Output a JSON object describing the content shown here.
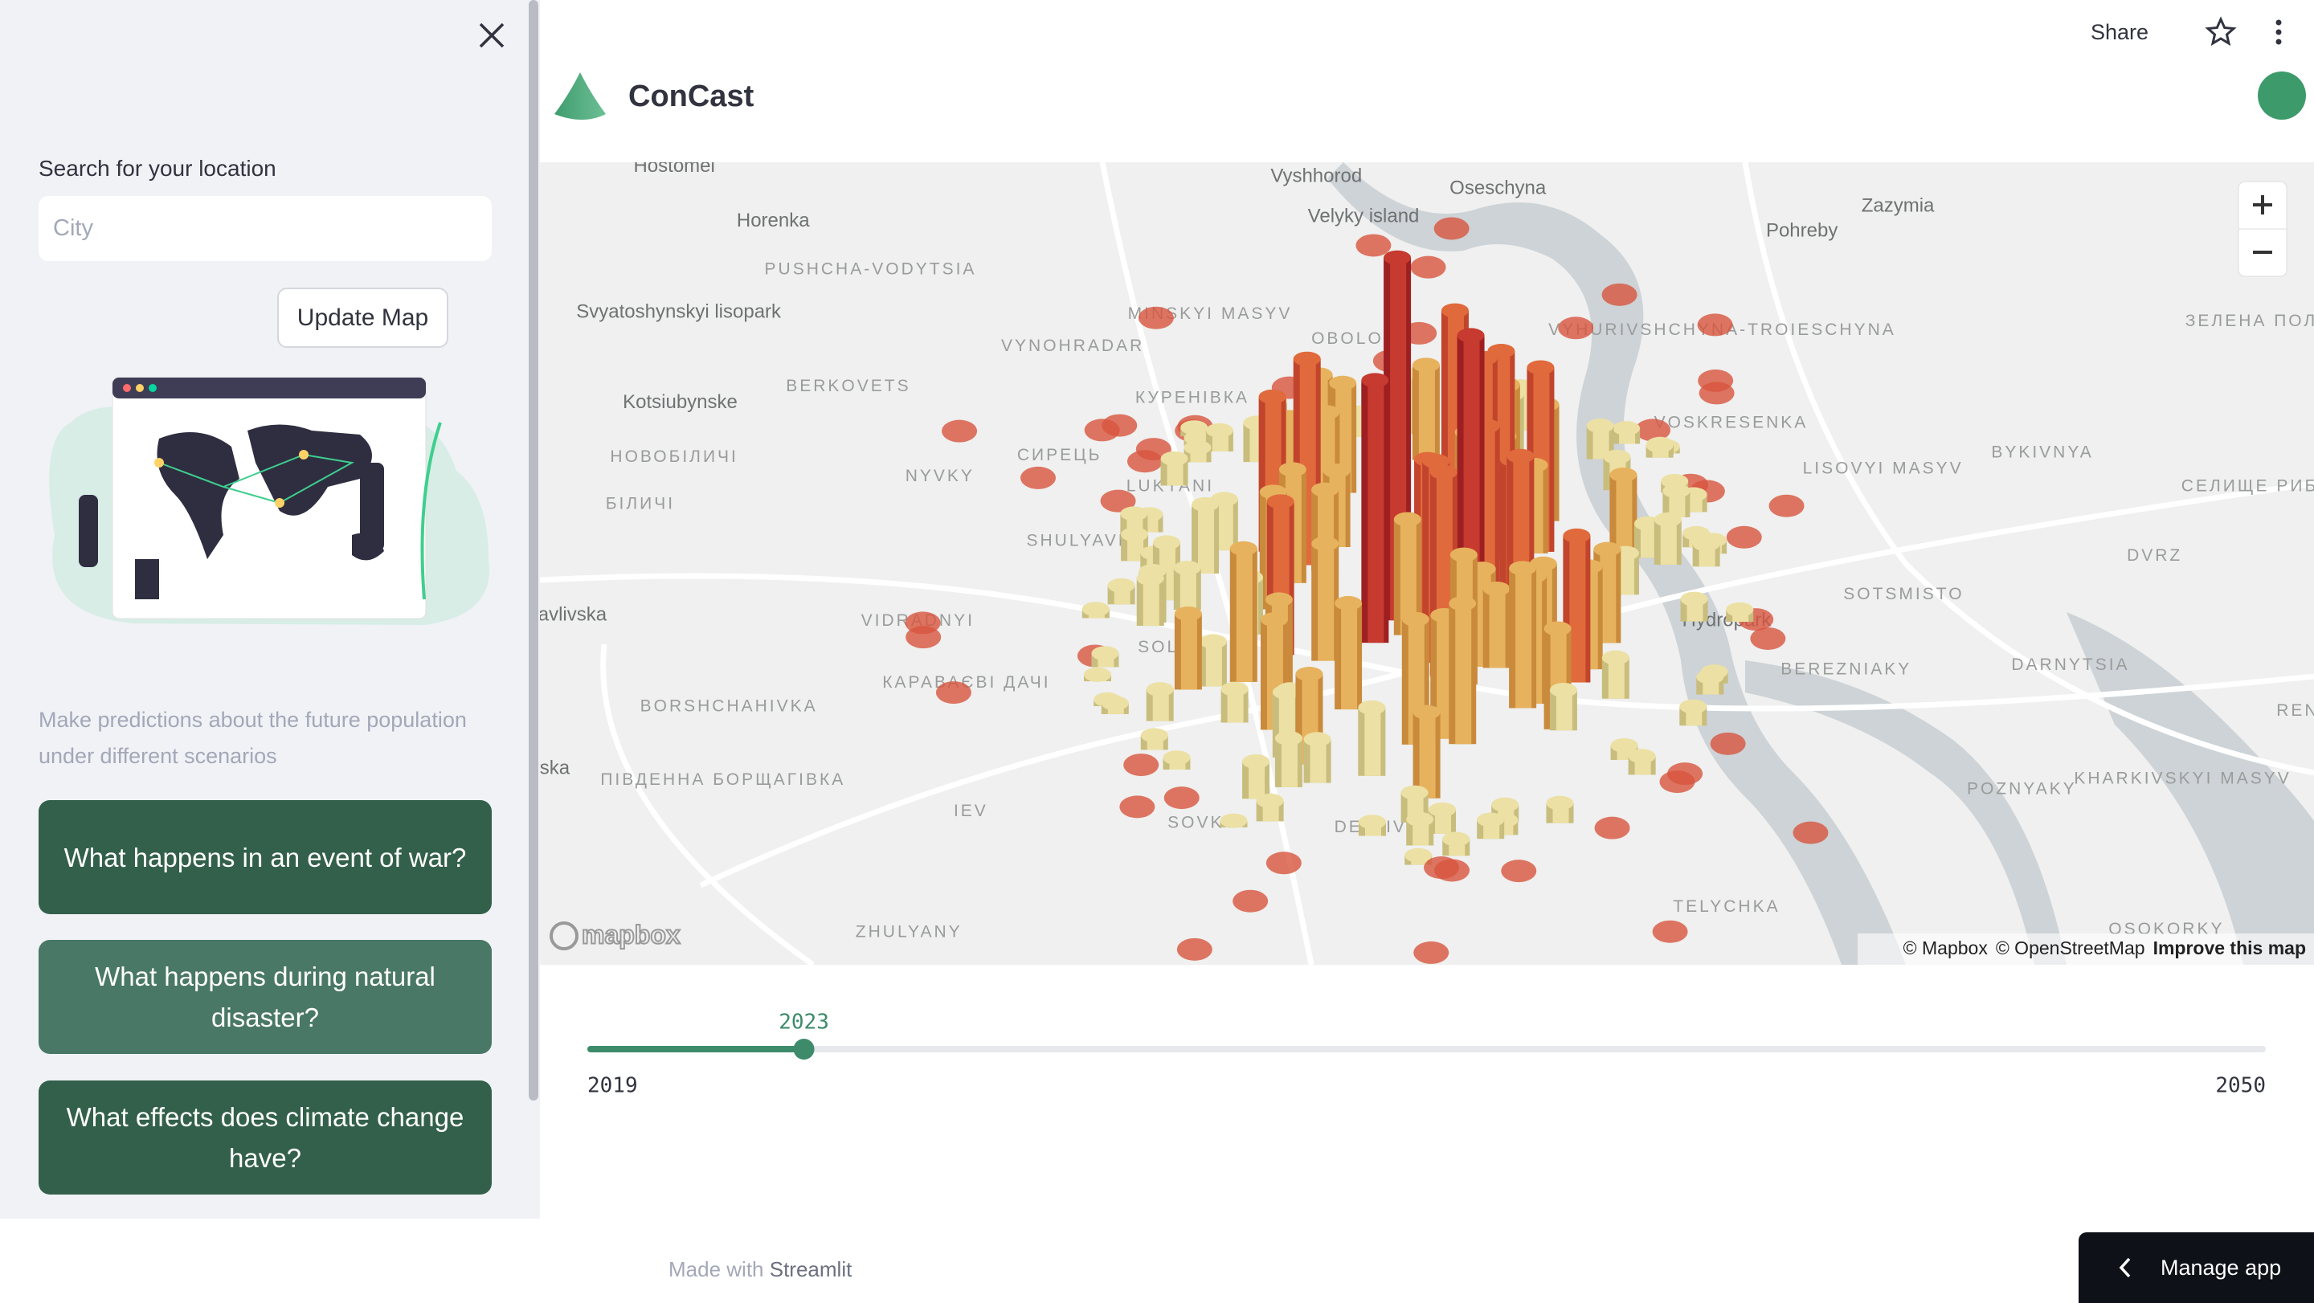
{
  "sidebar": {
    "search_label": "Search for your location",
    "search_placeholder": "City",
    "update_button": "Update Map",
    "description": "Make predictions about the future population under different scenarios",
    "scenario_buttons": [
      "What happens in an event of war?",
      "What happens during natural disaster?",
      "What effects does climate change have?"
    ]
  },
  "header": {
    "share": "Share",
    "app_title": "ConCast"
  },
  "map": {
    "place_labels": [
      "Hostomel",
      "Vyshhorod",
      "Oseschyna",
      "Zazymia",
      "Pohreby",
      "Horenka",
      "PUSHCHA-VODYTSIA",
      "Velyky island",
      "Svyatoshynskyi lisopark",
      "MINSKYI MASYV",
      "VYNOHRADAR",
      "OBOLON",
      "VYHURIVSHCHYNA-TROIESCHYNA",
      "ЗЕЛЕНА ПОЛЯНА",
      "Kotsiubynske",
      "BERKOVETS",
      "КУРЕНІВКА",
      "VOSKRESENKA",
      "НОВОБІЛИЧІ",
      "СИРЕЦЬ",
      "NYVKY",
      "LUKYANI",
      "LISOVYI MASYV",
      "BYKIVNYA",
      "СЕЛИЩЕ РИБНЕ",
      "БІЛИЧІ",
      "SHULYAVKA",
      "DVRZ",
      "SOTSMISTO",
      "Hydropark",
      "avlivska",
      "VIDRADNYI",
      "SOL",
      "КАРАВАЄВІ ДАЧІ",
      "BEREZNIAKY",
      "DARNYTSIA",
      "BORSHCHAHIVKA",
      "REN",
      "ПІВДЕННА БОРЩАГІВКА",
      "ska",
      "IEV",
      "KHARKIVSKYI MASYV",
      "POZNYAKY",
      "SOVKY",
      "DEMIIVKA",
      "TELYCHKA",
      "ZHULYANY",
      "OSOKORKY"
    ],
    "attribution": [
      "© Mapbox",
      "© OpenStreetMap",
      "Improve this map"
    ],
    "logo": "mapbox"
  },
  "slider": {
    "min": 2019,
    "max": 2050,
    "value": 2023
  },
  "footer": {
    "made_with": "Made with",
    "streamlit": "Streamlit",
    "manage_app": "Manage app"
  }
}
